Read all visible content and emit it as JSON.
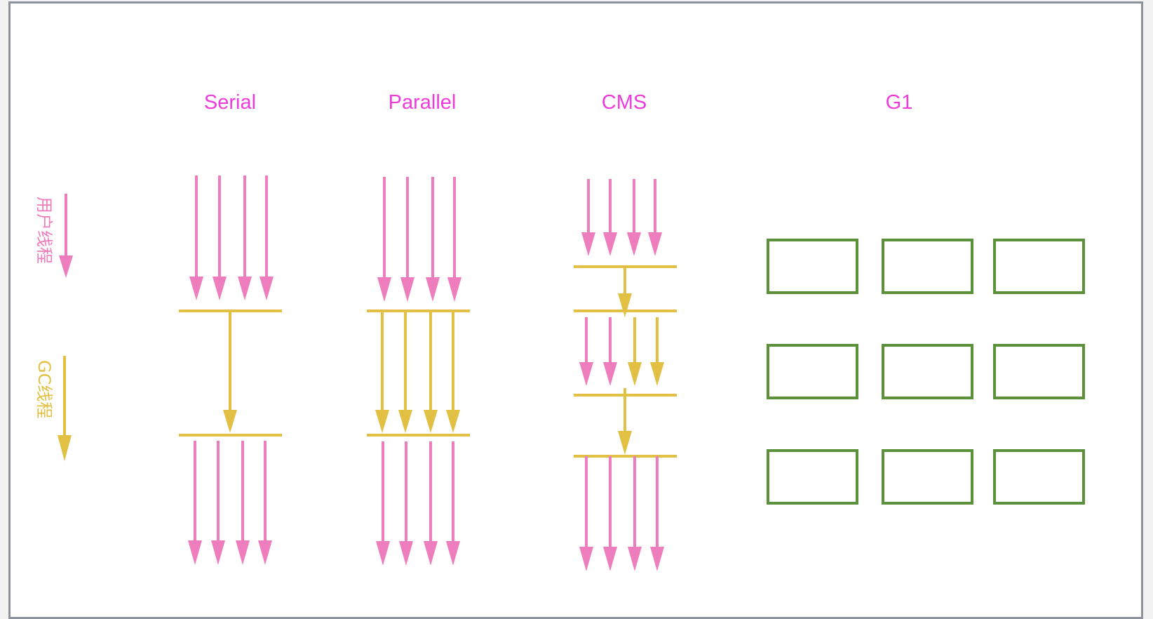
{
  "colors": {
    "frame": "#8c939c",
    "title": "#ee3bdb",
    "user_thread": "#ee7dbd",
    "gc_thread": "#e2c043",
    "region": "#5a913a"
  },
  "legend": {
    "user_threads": "用户线程",
    "gc_threads": "GC线程"
  },
  "collectors": [
    {
      "name": "Serial"
    },
    {
      "name": "Parallel"
    },
    {
      "name": "CMS"
    },
    {
      "name": "G1"
    }
  ]
}
